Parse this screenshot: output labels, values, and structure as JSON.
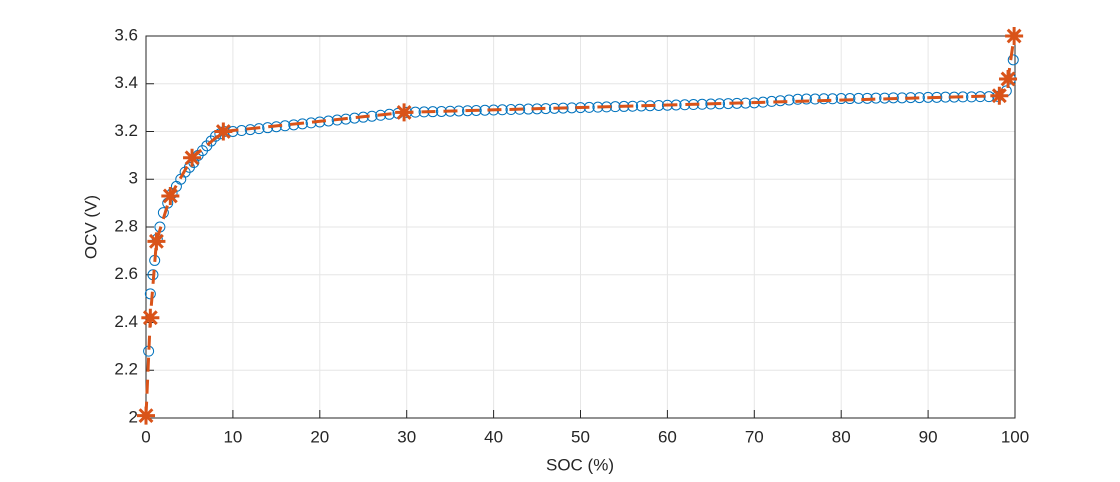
{
  "chart_data": {
    "type": "line",
    "xlabel": "SOC (%)",
    "ylabel": "OCV (V)",
    "xlim": [
      0,
      100
    ],
    "ylim": [
      2,
      3.6
    ],
    "xticks": [
      0,
      10,
      20,
      30,
      40,
      50,
      60,
      70,
      80,
      90,
      100
    ],
    "yticks": [
      2,
      2.2,
      2.4,
      2.6,
      2.8,
      3,
      3.2,
      3.4,
      3.6
    ],
    "grid": true,
    "series": [
      {
        "color": "#0072BD",
        "marker": "o",
        "linestyle": "none",
        "x": [
          0.3,
          0.5,
          0.8,
          1,
          1.3,
          1.6,
          2,
          2.5,
          3,
          3.5,
          4,
          4.5,
          5,
          5.5,
          6,
          6.5,
          7,
          7.5,
          8,
          8.5,
          9,
          10,
          11,
          12,
          13,
          14,
          15,
          16,
          17,
          18,
          19,
          20,
          21,
          22,
          23,
          24,
          25,
          26,
          27,
          28,
          29,
          30,
          31,
          32,
          33,
          34,
          35,
          36,
          37,
          38,
          39,
          40,
          41,
          42,
          43,
          44,
          45,
          46,
          47,
          48,
          49,
          50,
          51,
          52,
          53,
          54,
          55,
          56,
          57,
          58,
          59,
          60,
          61,
          62,
          63,
          64,
          65,
          66,
          67,
          68,
          69,
          70,
          71,
          72,
          73,
          74,
          75,
          76,
          77,
          78,
          79,
          80,
          81,
          82,
          83,
          84,
          85,
          86,
          87,
          88,
          89,
          90,
          91,
          92,
          93,
          94,
          95,
          96,
          97,
          98,
          99,
          99.5,
          99.8
        ],
        "values": [
          2.28,
          2.52,
          2.6,
          2.66,
          2.75,
          2.8,
          2.86,
          2.9,
          2.94,
          2.97,
          3.0,
          3.03,
          3.05,
          3.07,
          3.1,
          3.12,
          3.14,
          3.16,
          3.18,
          3.19,
          3.2,
          3.2,
          3.204,
          3.208,
          3.212,
          3.216,
          3.22,
          3.224,
          3.228,
          3.232,
          3.236,
          3.24,
          3.244,
          3.248,
          3.252,
          3.256,
          3.26,
          3.264,
          3.268,
          3.272,
          3.276,
          3.28,
          3.281,
          3.282,
          3.283,
          3.284,
          3.285,
          3.286,
          3.287,
          3.288,
          3.289,
          3.29,
          3.291,
          3.292,
          3.293,
          3.294,
          3.295,
          3.296,
          3.297,
          3.298,
          3.299,
          3.3,
          3.301,
          3.302,
          3.303,
          3.304,
          3.305,
          3.306,
          3.307,
          3.308,
          3.309,
          3.31,
          3.311,
          3.312,
          3.313,
          3.314,
          3.315,
          3.316,
          3.317,
          3.318,
          3.319,
          3.32,
          3.323,
          3.326,
          3.329,
          3.332,
          3.335,
          3.336,
          3.336,
          3.337,
          3.337,
          3.338,
          3.338,
          3.339,
          3.339,
          3.34,
          3.34,
          3.341,
          3.341,
          3.342,
          3.342,
          3.343,
          3.343,
          3.344,
          3.344,
          3.345,
          3.345,
          3.346,
          3.346,
          3.347,
          3.37,
          3.42,
          3.5
        ]
      },
      {
        "color": "#D95319",
        "marker": "*",
        "linestyle": "--",
        "x": [
          0,
          0.5,
          1.2,
          2.8,
          5.3,
          8.9,
          29.7,
          98.2,
          99.2,
          99.9
        ],
        "values": [
          2.01,
          2.42,
          2.74,
          2.93,
          3.09,
          3.2,
          3.28,
          3.35,
          3.42,
          3.6
        ]
      }
    ]
  }
}
